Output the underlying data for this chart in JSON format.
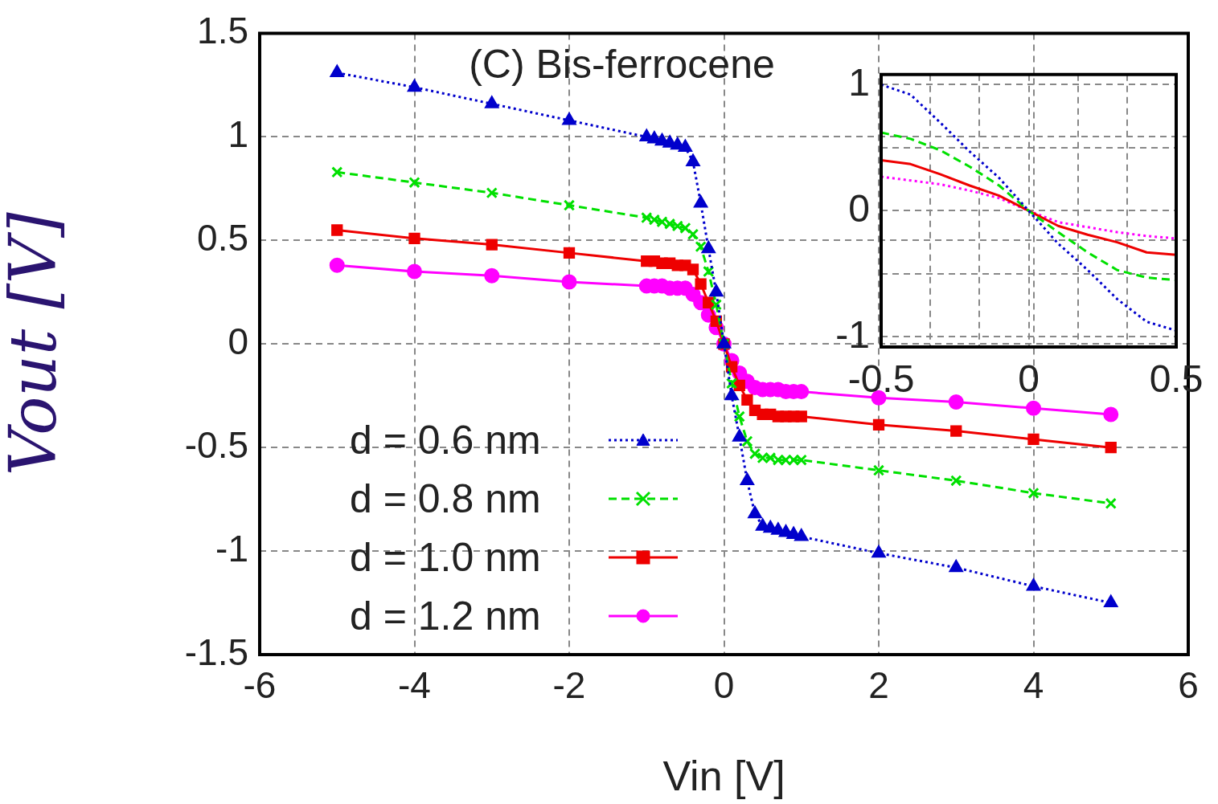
{
  "chart_data": [
    {
      "type": "line",
      "title": "(C) Bis-ferrocene",
      "xlabel": "Vin [V]",
      "ylabel": "Vout [V]",
      "x": [
        -5,
        -4,
        -3,
        -2,
        -1,
        -0.9,
        -0.8,
        -0.7,
        -0.6,
        -0.5,
        -0.4,
        -0.3,
        -0.2,
        -0.1,
        0,
        0.1,
        0.2,
        0.3,
        0.4,
        0.5,
        0.6,
        0.7,
        0.8,
        0.9,
        1,
        2,
        3,
        4,
        5
      ],
      "series": [
        {
          "name": "d = 0.6 nm",
          "color": "#0000cc",
          "line_style": "dotted",
          "marker": "triangle",
          "values": [
            1.31,
            1.24,
            1.16,
            1.08,
            1.0,
            0.99,
            0.98,
            0.97,
            0.96,
            0.95,
            0.88,
            0.68,
            0.46,
            0.25,
            0,
            -0.25,
            -0.45,
            -0.66,
            -0.82,
            -0.88,
            -0.89,
            -0.9,
            -0.91,
            -0.92,
            -0.93,
            -1.01,
            -1.08,
            -1.17,
            -1.25
          ]
        },
        {
          "name": "d = 0.8 nm",
          "color": "#00e000",
          "line_style": "dashed",
          "marker": "cross",
          "values": [
            0.83,
            0.78,
            0.73,
            0.67,
            0.61,
            0.6,
            0.59,
            0.58,
            0.57,
            0.56,
            0.53,
            0.47,
            0.35,
            0.19,
            0,
            -0.19,
            -0.35,
            -0.47,
            -0.53,
            -0.55,
            -0.55,
            -0.56,
            -0.56,
            -0.56,
            -0.56,
            -0.61,
            -0.66,
            -0.72,
            -0.77
          ]
        },
        {
          "name": "d = 1.0 nm",
          "color": "#ee0000",
          "line_style": "solid",
          "marker": "square",
          "values": [
            0.55,
            0.51,
            0.48,
            0.44,
            0.4,
            0.4,
            0.39,
            0.39,
            0.38,
            0.38,
            0.36,
            0.29,
            0.2,
            0.11,
            0,
            -0.11,
            -0.2,
            -0.27,
            -0.32,
            -0.34,
            -0.34,
            -0.35,
            -0.35,
            -0.35,
            -0.35,
            -0.39,
            -0.42,
            -0.46,
            -0.5
          ]
        },
        {
          "name": "d = 1.2 nm",
          "color": "#ff00ff",
          "line_style": "solid",
          "marker": "circle",
          "values": [
            0.38,
            0.35,
            0.33,
            0.3,
            0.28,
            0.28,
            0.28,
            0.27,
            0.27,
            0.27,
            0.24,
            0.2,
            0.14,
            0.08,
            0,
            -0.08,
            -0.14,
            -0.18,
            -0.21,
            -0.22,
            -0.22,
            -0.22,
            -0.23,
            -0.23,
            -0.23,
            -0.26,
            -0.28,
            -0.31,
            -0.34
          ]
        }
      ],
      "xlim": [
        -6,
        6
      ],
      "xticks": [
        -6,
        -4,
        -2,
        0,
        2,
        4,
        6
      ],
      "ylim": [
        -1.5,
        1.5
      ],
      "yticks": [
        -1.5,
        -1,
        -0.5,
        0,
        0.5,
        1,
        1.5
      ],
      "grid": true,
      "legend": "bottom left"
    },
    {
      "type": "line",
      "x": [
        -0.5,
        -0.4,
        -0.3,
        -0.2,
        -0.1,
        0,
        0.1,
        0.2,
        0.3,
        0.4,
        0.5
      ],
      "series": [
        {
          "color": "#0000cc",
          "line_style": "dotted",
          "values": [
            1.0,
            0.92,
            0.7,
            0.47,
            0.26,
            0,
            -0.26,
            -0.47,
            -0.7,
            -0.88,
            -0.95
          ]
        },
        {
          "color": "#00e000",
          "line_style": "dashed",
          "values": [
            0.62,
            0.57,
            0.48,
            0.35,
            0.2,
            0,
            -0.17,
            -0.33,
            -0.47,
            -0.53,
            -0.55
          ]
        },
        {
          "color": "#ee0000",
          "line_style": "solid",
          "values": [
            0.4,
            0.37,
            0.29,
            0.2,
            0.12,
            0,
            -0.12,
            -0.19,
            -0.25,
            -0.33,
            -0.35
          ]
        },
        {
          "color": "#ff00ff",
          "line_style": "dotted",
          "values": [
            0.27,
            0.24,
            0.21,
            0.16,
            0.1,
            0,
            -0.09,
            -0.13,
            -0.17,
            -0.2,
            -0.22
          ]
        }
      ],
      "xlim": [
        -0.5,
        0.5
      ],
      "xticks": [
        -0.5,
        {
          "value": -0.333,
          "label": null
        },
        {
          "value": -0.167,
          "label": null
        },
        0,
        {
          "value": 0.167,
          "label": null
        },
        {
          "value": 0.333,
          "label": null
        },
        0.5
      ],
      "ylim": [
        -1.08,
        1.08
      ],
      "yticks": [
        -1,
        {
          "value": -0.5,
          "label": null
        },
        0,
        {
          "value": 0.5,
          "label": null
        },
        1
      ],
      "grid": true
    }
  ]
}
